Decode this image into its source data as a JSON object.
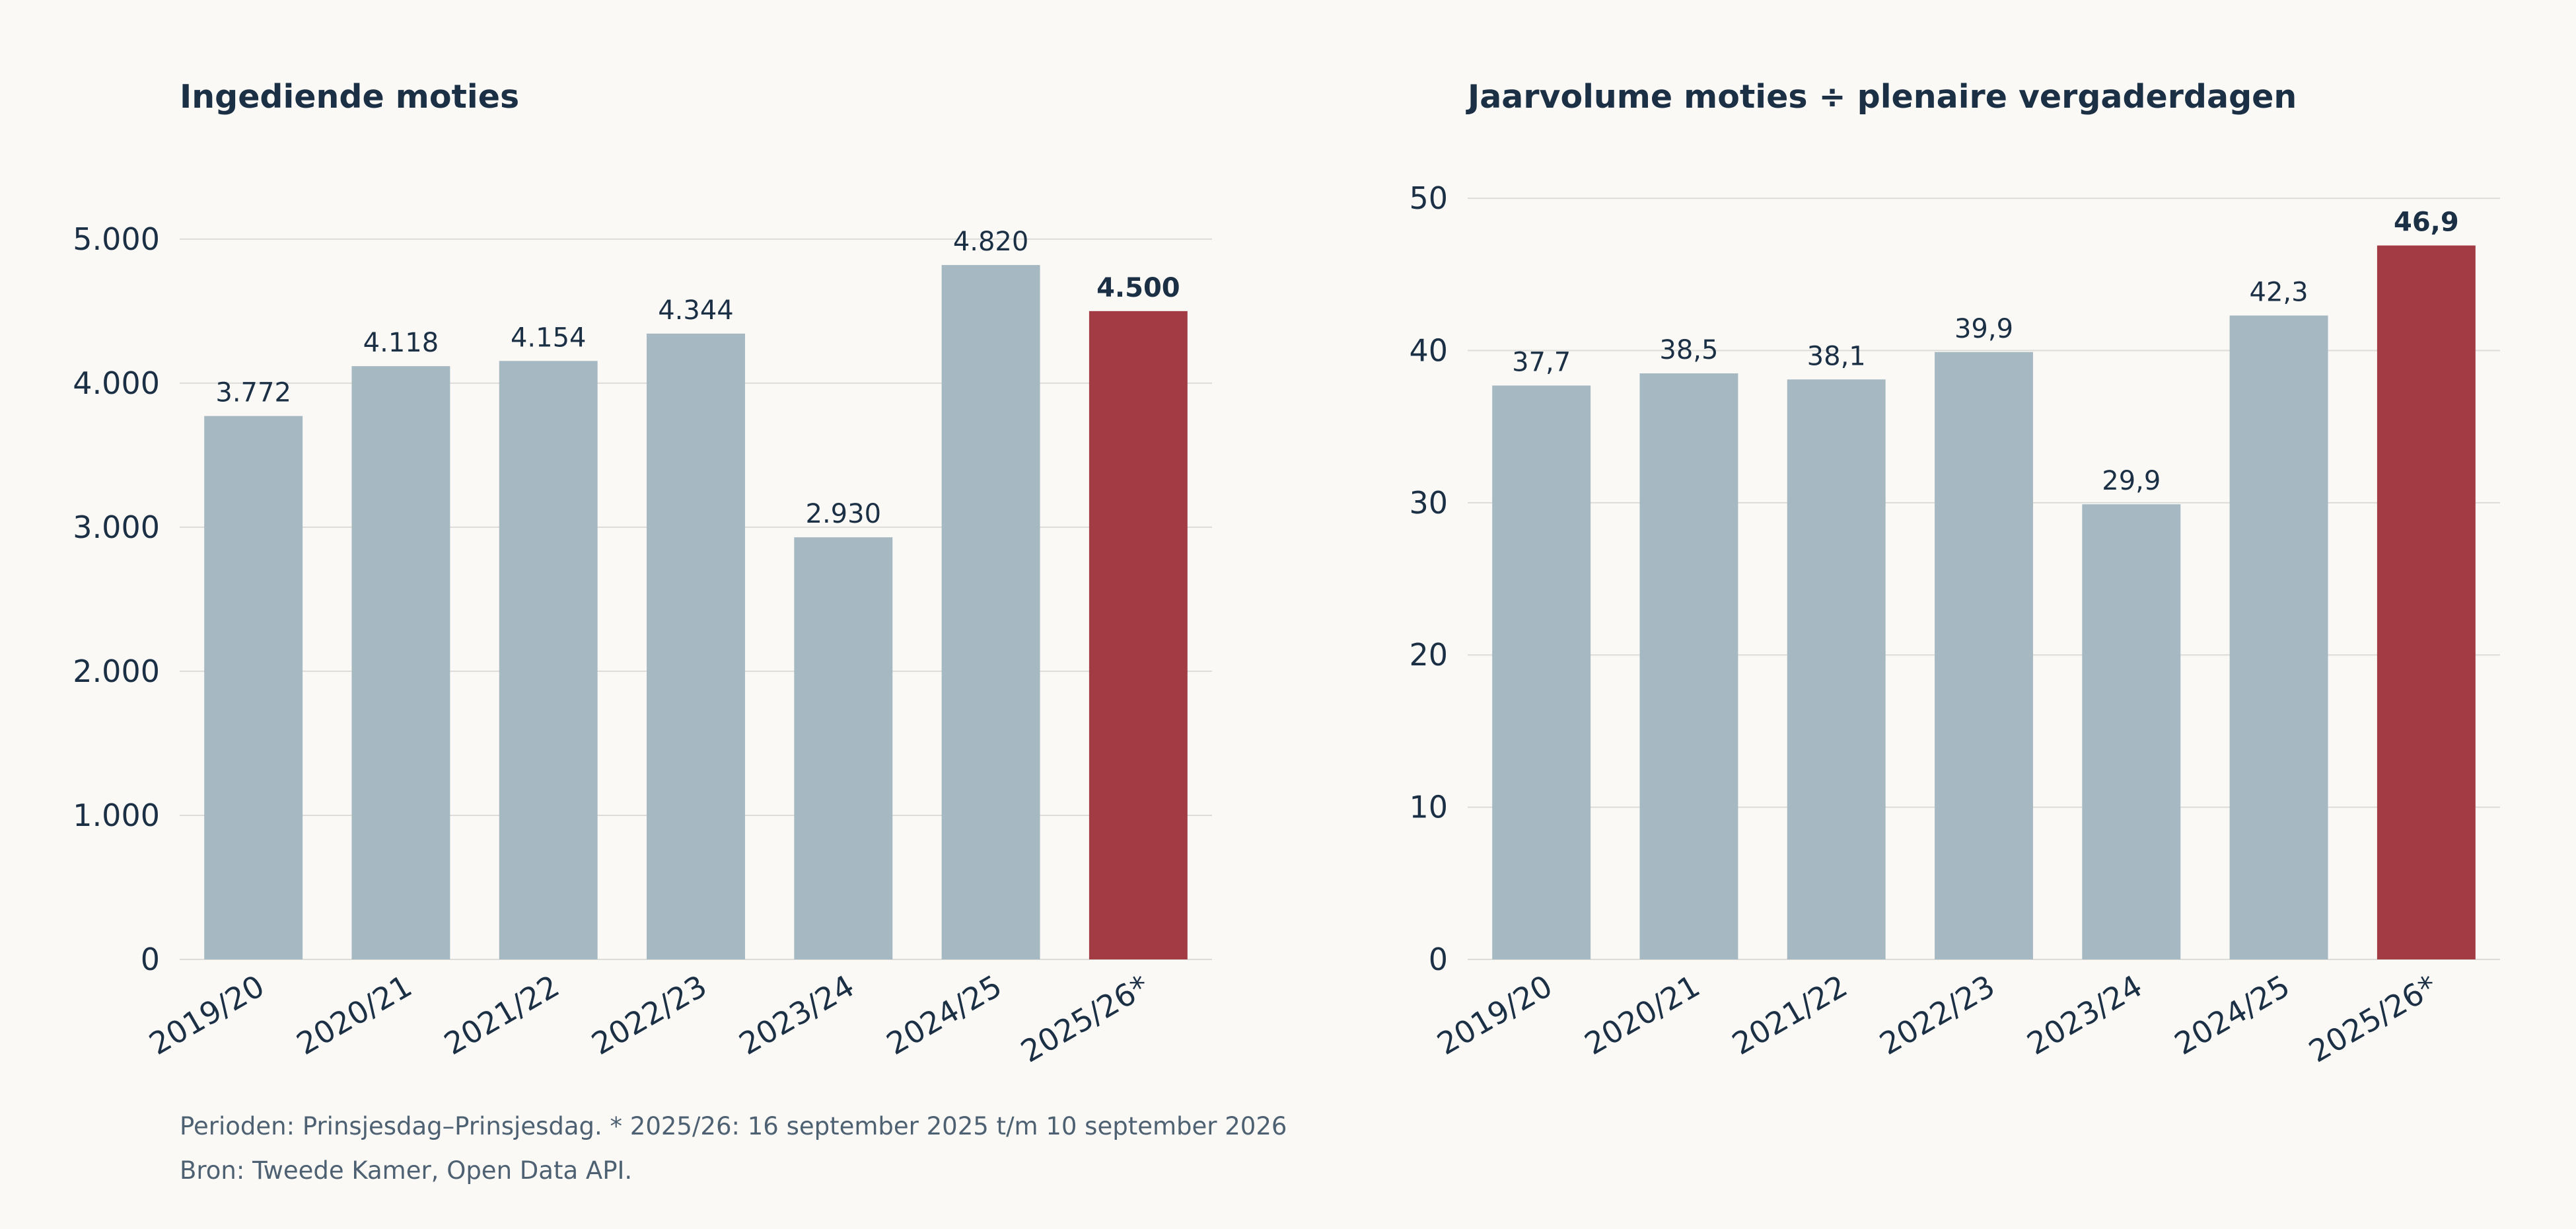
{
  "colors": {
    "bar_default": "#a6b9c2",
    "bar_highlight": "#a23b44",
    "text": "#1b2f45",
    "grid": "#dcdcd8",
    "footnote": "#4e6172",
    "background": "#faf9f5"
  },
  "chart_data": [
    {
      "type": "bar",
      "title": "Ingediende moties",
      "xlabel": "",
      "ylabel": "",
      "categories": [
        "2019/20",
        "2020/21",
        "2021/22",
        "2022/23",
        "2023/24",
        "2024/25",
        "2025/26*"
      ],
      "values": [
        3772,
        4118,
        4154,
        4344,
        2930,
        4820,
        4500
      ],
      "value_labels": [
        "3.772",
        "4.118",
        "4.154",
        "4.344",
        "2.930",
        "4.820",
        "4.500"
      ],
      "highlight_index": 6,
      "ylim": [
        0,
        5600
      ],
      "yticks": [
        0,
        1000,
        2000,
        3000,
        4000,
        5000
      ],
      "ytick_labels": [
        "0",
        "1.000",
        "2.000",
        "3.000",
        "4.000",
        "5.000"
      ],
      "grid": true,
      "legend": false
    },
    {
      "type": "bar",
      "title": "Jaarvolume moties ÷ plenaire vergaderdagen",
      "xlabel": "",
      "ylabel": "",
      "categories": [
        "2019/20",
        "2020/21",
        "2021/22",
        "2022/23",
        "2023/24",
        "2024/25",
        "2025/26*"
      ],
      "values": [
        37.7,
        38.5,
        38.1,
        39.9,
        29.9,
        42.3,
        46.9
      ],
      "value_labels": [
        "37,7",
        "38,5",
        "38,1",
        "39,9",
        "29,9",
        "42,3",
        "46,9"
      ],
      "highlight_index": 6,
      "ylim": [
        0,
        53
      ],
      "yticks": [
        0,
        10,
        20,
        30,
        40,
        50
      ],
      "ytick_labels": [
        "0",
        "10",
        "20",
        "30",
        "40",
        "50"
      ],
      "grid": true,
      "legend": false
    }
  ],
  "footnotes": {
    "note": "Perioden: Prinsjesdag–Prinsjesdag. * 2025/26: 16 september 2025 t/m 10 september 2026",
    "source": "Bron: Tweede Kamer, Open Data API."
  }
}
